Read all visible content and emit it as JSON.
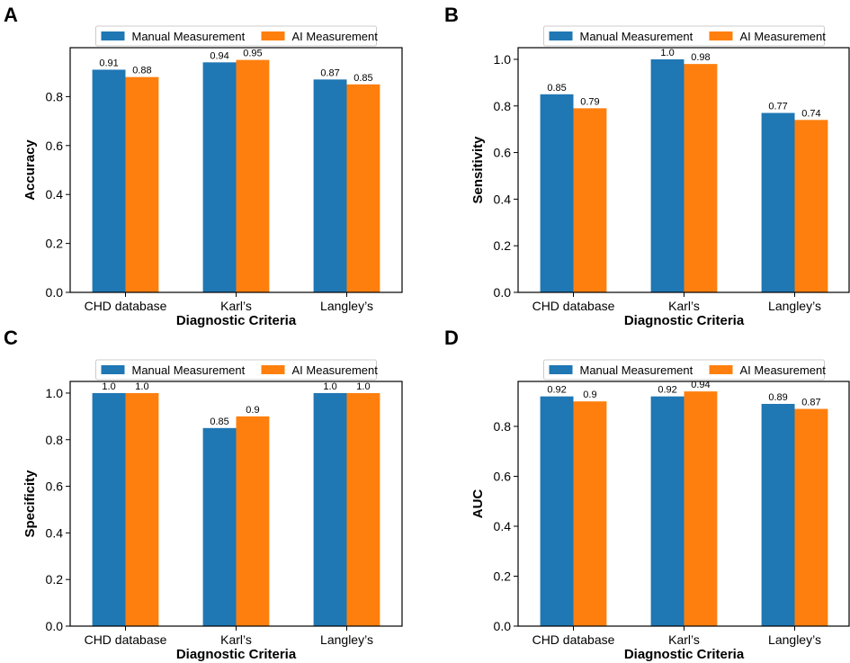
{
  "colors": {
    "manual": "#1f77b4",
    "ai": "#ff7f0e",
    "axis": "#000000"
  },
  "chart_data": [
    {
      "panel_label": "A",
      "type": "bar",
      "title": "",
      "categories": [
        "CHD database",
        "Karl’s",
        "Langley’s"
      ],
      "series": [
        {
          "name": "Manual Measurement",
          "values": [
            0.91,
            0.94,
            0.87
          ],
          "labels": [
            "0.91",
            "0.94",
            "0.87"
          ]
        },
        {
          "name": "AI Measurement",
          "values": [
            0.88,
            0.95,
            0.85
          ],
          "labels": [
            "0.88",
            "0.95",
            "0.85"
          ]
        }
      ],
      "xlabel": "Diagnostic Criteria",
      "ylabel": "Accuracy",
      "ylim": [
        0,
        1.0
      ],
      "yticks": [
        0.0,
        0.2,
        0.4,
        0.6,
        0.8
      ],
      "ytick_labels": [
        "0.0",
        "0.2",
        "0.4",
        "0.6",
        "0.8"
      ],
      "legend_position": "top",
      "grid": false
    },
    {
      "panel_label": "B",
      "type": "bar",
      "title": "",
      "categories": [
        "CHD database",
        "Karl’s",
        "Langley’s"
      ],
      "series": [
        {
          "name": "Manual Measurement",
          "values": [
            0.85,
            1.0,
            0.77
          ],
          "labels": [
            "0.85",
            "1.0",
            "0.77"
          ]
        },
        {
          "name": "AI Measurement",
          "values": [
            0.79,
            0.98,
            0.74
          ],
          "labels": [
            "0.79",
            "0.98",
            "0.74"
          ]
        }
      ],
      "xlabel": "Diagnostic Criteria",
      "ylabel": "Sensitivity",
      "ylim": [
        0,
        1.05
      ],
      "yticks": [
        0.0,
        0.2,
        0.4,
        0.6,
        0.8,
        1.0
      ],
      "ytick_labels": [
        "0.0",
        "0.2",
        "0.4",
        "0.6",
        "0.8",
        "1.0"
      ],
      "legend_position": "top",
      "grid": false
    },
    {
      "panel_label": "C",
      "type": "bar",
      "title": "",
      "categories": [
        "CHD database",
        "Karl’s",
        "Langley’s"
      ],
      "series": [
        {
          "name": "Manual Measurement",
          "values": [
            1.0,
            0.85,
            1.0
          ],
          "labels": [
            "1.0",
            "0.85",
            "1.0"
          ]
        },
        {
          "name": "AI Measurement",
          "values": [
            1.0,
            0.9,
            1.0
          ],
          "labels": [
            "1.0",
            "0.9",
            "1.0"
          ]
        }
      ],
      "xlabel": "Diagnostic Criteria",
      "ylabel": "Specificity",
      "ylim": [
        0,
        1.05
      ],
      "yticks": [
        0.0,
        0.2,
        0.4,
        0.6,
        0.8,
        1.0
      ],
      "ytick_labels": [
        "0.0",
        "0.2",
        "0.4",
        "0.6",
        "0.8",
        "1.0"
      ],
      "legend_position": "top",
      "grid": false
    },
    {
      "panel_label": "D",
      "type": "bar",
      "title": "",
      "categories": [
        "CHD database",
        "Karl’s",
        "Langley’s"
      ],
      "series": [
        {
          "name": "Manual Measurement",
          "values": [
            0.92,
            0.92,
            0.89
          ],
          "labels": [
            "0.92",
            "0.92",
            "0.89"
          ]
        },
        {
          "name": "AI Measurement",
          "values": [
            0.9,
            0.94,
            0.87
          ],
          "labels": [
            "0.9",
            "0.94",
            "0.87"
          ]
        }
      ],
      "xlabel": "Diagnostic Criteria",
      "ylabel": "AUC",
      "ylim": [
        0,
        0.98
      ],
      "yticks": [
        0.0,
        0.2,
        0.4,
        0.6,
        0.8
      ],
      "ytick_labels": [
        "0.0",
        "0.2",
        "0.4",
        "0.6",
        "0.8"
      ],
      "legend_position": "top",
      "grid": false
    }
  ]
}
